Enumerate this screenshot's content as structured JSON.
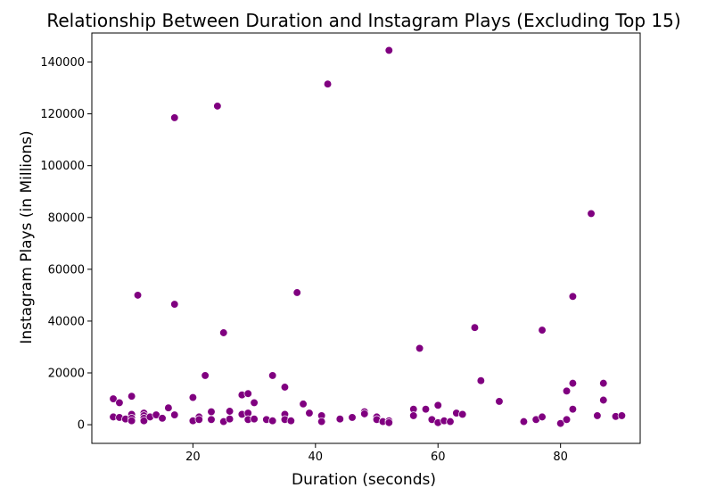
{
  "chart_data": {
    "type": "scatter",
    "title": "Relationship Between Duration and Instagram Plays (Excluding Top 15)",
    "xlabel": "Duration (seconds)",
    "ylabel": "Instagram Plays (in Millions)",
    "xlim": [
      3.5,
      93
    ],
    "ylim": [
      -7200,
      151200
    ],
    "xticks": [
      20,
      40,
      60,
      80
    ],
    "yticks": [
      0,
      20000,
      40000,
      60000,
      80000,
      100000,
      120000,
      140000
    ],
    "grid": false,
    "marker_color": "#800080",
    "points": [
      {
        "x": 7,
        "y": 10000
      },
      {
        "x": 7,
        "y": 3000
      },
      {
        "x": 8,
        "y": 8500
      },
      {
        "x": 8,
        "y": 2800
      },
      {
        "x": 9,
        "y": 2200
      },
      {
        "x": 10,
        "y": 11000
      },
      {
        "x": 10,
        "y": 4000
      },
      {
        "x": 10,
        "y": 2500
      },
      {
        "x": 10,
        "y": 1500
      },
      {
        "x": 11,
        "y": 50000
      },
      {
        "x": 12,
        "y": 4500
      },
      {
        "x": 12,
        "y": 3500
      },
      {
        "x": 12,
        "y": 2500
      },
      {
        "x": 12,
        "y": 1500
      },
      {
        "x": 13,
        "y": 3000
      },
      {
        "x": 14,
        "y": 3800
      },
      {
        "x": 15,
        "y": 2500
      },
      {
        "x": 16,
        "y": 6500
      },
      {
        "x": 17,
        "y": 118500
      },
      {
        "x": 17,
        "y": 46500
      },
      {
        "x": 17,
        "y": 3800
      },
      {
        "x": 20,
        "y": 10500
      },
      {
        "x": 20,
        "y": 1500
      },
      {
        "x": 21,
        "y": 3000
      },
      {
        "x": 21,
        "y": 2000
      },
      {
        "x": 22,
        "y": 19000
      },
      {
        "x": 23,
        "y": 5000
      },
      {
        "x": 23,
        "y": 2000
      },
      {
        "x": 24,
        "y": 123000
      },
      {
        "x": 25,
        "y": 35500
      },
      {
        "x": 25,
        "y": 1200
      },
      {
        "x": 26,
        "y": 5200
      },
      {
        "x": 26,
        "y": 2200
      },
      {
        "x": 28,
        "y": 11500
      },
      {
        "x": 28,
        "y": 4000
      },
      {
        "x": 29,
        "y": 12000
      },
      {
        "x": 29,
        "y": 4500
      },
      {
        "x": 29,
        "y": 2000
      },
      {
        "x": 30,
        "y": 8500
      },
      {
        "x": 30,
        "y": 2200
      },
      {
        "x": 32,
        "y": 2000
      },
      {
        "x": 33,
        "y": 19000
      },
      {
        "x": 33,
        "y": 1500
      },
      {
        "x": 35,
        "y": 14500
      },
      {
        "x": 35,
        "y": 4000
      },
      {
        "x": 35,
        "y": 2000
      },
      {
        "x": 36,
        "y": 1500
      },
      {
        "x": 37,
        "y": 51000
      },
      {
        "x": 38,
        "y": 8000
      },
      {
        "x": 39,
        "y": 4500
      },
      {
        "x": 41,
        "y": 3500
      },
      {
        "x": 41,
        "y": 1200
      },
      {
        "x": 42,
        "y": 131500
      },
      {
        "x": 44,
        "y": 2200
      },
      {
        "x": 46,
        "y": 2800
      },
      {
        "x": 48,
        "y": 5000
      },
      {
        "x": 48,
        "y": 4200
      },
      {
        "x": 50,
        "y": 3000
      },
      {
        "x": 50,
        "y": 2000
      },
      {
        "x": 51,
        "y": 1200
      },
      {
        "x": 52,
        "y": 144500
      },
      {
        "x": 52,
        "y": 1500
      },
      {
        "x": 52,
        "y": 800
      },
      {
        "x": 56,
        "y": 6000
      },
      {
        "x": 56,
        "y": 3500
      },
      {
        "x": 57,
        "y": 29500
      },
      {
        "x": 58,
        "y": 6000
      },
      {
        "x": 59,
        "y": 2000
      },
      {
        "x": 60,
        "y": 7500
      },
      {
        "x": 60,
        "y": 800
      },
      {
        "x": 61,
        "y": 1500
      },
      {
        "x": 62,
        "y": 1200
      },
      {
        "x": 63,
        "y": 4500
      },
      {
        "x": 64,
        "y": 4000
      },
      {
        "x": 66,
        "y": 37500
      },
      {
        "x": 67,
        "y": 17000
      },
      {
        "x": 70,
        "y": 9000
      },
      {
        "x": 74,
        "y": 1200
      },
      {
        "x": 76,
        "y": 2000
      },
      {
        "x": 77,
        "y": 36500
      },
      {
        "x": 77,
        "y": 3000
      },
      {
        "x": 80,
        "y": 500
      },
      {
        "x": 81,
        "y": 13000
      },
      {
        "x": 81,
        "y": 2000
      },
      {
        "x": 82,
        "y": 49500
      },
      {
        "x": 82,
        "y": 16000
      },
      {
        "x": 82,
        "y": 6000
      },
      {
        "x": 85,
        "y": 81500
      },
      {
        "x": 86,
        "y": 3500
      },
      {
        "x": 87,
        "y": 16000
      },
      {
        "x": 87,
        "y": 9500
      },
      {
        "x": 89,
        "y": 3200
      },
      {
        "x": 90,
        "y": 3500
      }
    ]
  }
}
